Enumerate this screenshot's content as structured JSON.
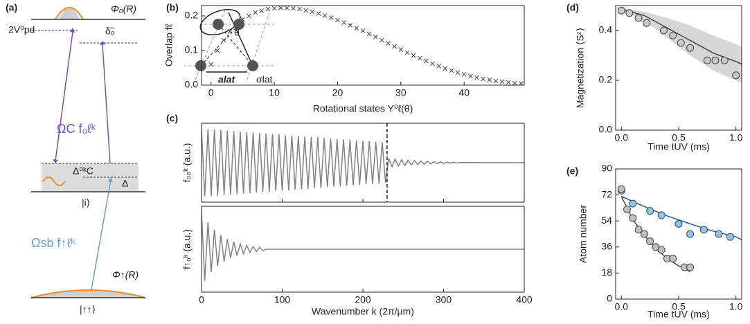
{
  "diagram_a": {
    "panel_label": "(a)",
    "phi0": "Φ₀(R)",
    "v_pd": "2V⁰pd",
    "delta0": "δ̃₀",
    "omega_c": "ΩC f₀ℓᵏ",
    "delta_c": "Δ⁰ᵏC",
    "delta": "Δ",
    "state_i": "|i⟩",
    "omega_sb": "Ωsb f↑ℓᵏ",
    "phi_up": "Φ↑(R)",
    "state_up": "|↑↑⟩"
  },
  "diagram_b": {
    "theta": "θ",
    "a_lat": "alat",
    "sigma_lat": "σlat"
  },
  "chart_data": [
    {
      "type": "scatter",
      "panel_label": "(b)",
      "ylabel": "Overlap fℓ",
      "xlabel": "Rotational states Y⁰ℓ(θ)",
      "xlim": [
        -1.5,
        49.5
      ],
      "xticks": [
        0,
        10,
        20,
        30,
        40
      ],
      "ylim": [
        0,
        0.23
      ],
      "yticks": [
        {
          "value": 0,
          "label": "0.0"
        },
        0.1,
        0.2
      ],
      "series": [
        {
          "color": "#555555",
          "marker": "x",
          "x": [
            0,
            1,
            2,
            3,
            4,
            5,
            6,
            7,
            8,
            9,
            10,
            11,
            12,
            13,
            14,
            15,
            16,
            17,
            18,
            19,
            20,
            21,
            22,
            23,
            24,
            25,
            26,
            27,
            28,
            29,
            30,
            31,
            32,
            33,
            34,
            35,
            36,
            37,
            38,
            39,
            40,
            41,
            42,
            43,
            44,
            45,
            46,
            47,
            48,
            49
          ],
          "values": [
            0.06,
            0.1,
            0.13,
            0.155,
            0.175,
            0.19,
            0.2,
            0.21,
            0.215,
            0.22,
            0.222,
            0.223,
            0.223,
            0.222,
            0.22,
            0.216,
            0.212,
            0.207,
            0.201,
            0.195,
            0.188,
            0.181,
            0.173,
            0.165,
            0.157,
            0.148,
            0.139,
            0.13,
            0.121,
            0.112,
            0.103,
            0.094,
            0.086,
            0.078,
            0.07,
            0.062,
            0.055,
            0.048,
            0.042,
            0.036,
            0.031,
            0.026,
            0.022,
            0.018,
            0.015,
            0.012,
            0.01,
            0.008,
            0.006,
            0.005
          ]
        }
      ]
    },
    {
      "type": "line",
      "panel_label": "(c)",
      "ylabel": "f₀₀ᵏ (a.u.)",
      "xlim": [
        0,
        400
      ],
      "xticks": [
        0,
        100,
        200,
        300,
        400
      ],
      "xtick_labels": false,
      "ylim": [
        -1.1,
        1.1
      ],
      "vline": 230,
      "series": [
        {
          "color": "#808080",
          "x": [
            0,
            4,
            8,
            12,
            16,
            20,
            24,
            28,
            32,
            36,
            40,
            44,
            48,
            52,
            56,
            60,
            64,
            68,
            72,
            76,
            80,
            84,
            88,
            92,
            96,
            100,
            104,
            108,
            112,
            116,
            120,
            124,
            128,
            132,
            136,
            140,
            144,
            148,
            152,
            156,
            160,
            164,
            168,
            172,
            176,
            180,
            184,
            188,
            192,
            196,
            200,
            204,
            208,
            212,
            216,
            220,
            224,
            228,
            232,
            236,
            240,
            244,
            248,
            252,
            256,
            260,
            264,
            268,
            272,
            276,
            280,
            284,
            288,
            292,
            296,
            300,
            304,
            308,
            312,
            316,
            320,
            400
          ],
          "values": [
            0.95,
            -0.94,
            0.94,
            -0.93,
            0.92,
            -0.92,
            0.91,
            -0.9,
            0.9,
            -0.89,
            0.88,
            -0.88,
            0.87,
            -0.86,
            0.85,
            -0.85,
            0.84,
            -0.83,
            0.83,
            -0.82,
            0.81,
            -0.81,
            0.8,
            -0.79,
            0.79,
            -0.78,
            0.77,
            -0.77,
            0.76,
            -0.75,
            0.75,
            -0.74,
            0.73,
            -0.73,
            0.72,
            -0.71,
            0.71,
            -0.7,
            0.69,
            -0.68,
            0.68,
            -0.67,
            0.66,
            -0.66,
            0.65,
            -0.64,
            0.64,
            -0.63,
            0.62,
            -0.62,
            0.61,
            -0.6,
            0.6,
            -0.59,
            0.58,
            -0.58,
            0.57,
            -0.56,
            0.12,
            -0.11,
            0.1,
            -0.09,
            0.085,
            -0.08,
            0.07,
            -0.065,
            0.06,
            -0.055,
            0.05,
            -0.045,
            0.04,
            -0.035,
            0.03,
            -0.027,
            0.024,
            -0.02,
            0.017,
            -0.014,
            0.011,
            -0.008,
            0.005,
            0
          ]
        }
      ]
    },
    {
      "type": "line",
      "ylabel": "f↑₀ᵏ (a.u.)",
      "xlabel": "Wavenumber k (2π/μm)",
      "xlim": [
        0,
        400
      ],
      "xticks": [
        0,
        100,
        200,
        300,
        400
      ],
      "ylim": [
        -1.1,
        1.1
      ],
      "series": [
        {
          "color": "#808080",
          "x": [
            0,
            4,
            8,
            12,
            16,
            20,
            24,
            28,
            32,
            36,
            40,
            44,
            48,
            52,
            56,
            60,
            64,
            68,
            72,
            76,
            80,
            400
          ],
          "values": [
            0.95,
            -0.81,
            0.69,
            -0.59,
            0.5,
            -0.43,
            0.36,
            -0.31,
            0.26,
            -0.22,
            0.19,
            -0.16,
            0.14,
            -0.12,
            0.1,
            -0.08,
            0.07,
            -0.06,
            0.05,
            -0.04,
            0,
            0
          ]
        }
      ]
    },
    {
      "type": "scatter",
      "panel_label": "(d)",
      "ylabel": "Magnetization ⟨Sᶻ⟩",
      "xlabel": "Time tUV (ms)",
      "xlim": [
        -0.05,
        1.05
      ],
      "xticks": [
        {
          "value": 0,
          "label": "0.0"
        },
        0.5,
        {
          "value": 1,
          "label": "1.0"
        }
      ],
      "ylim": [
        0,
        0.5
      ],
      "yticks": [
        {
          "value": 0,
          "label": "0.0"
        },
        0.2,
        0.4
      ],
      "series": [
        {
          "mode": "line",
          "color": "#444444",
          "band_color": "#d6d6d6",
          "x": [
            0,
            0.2,
            0.4,
            0.6,
            0.8,
            1.0,
            1.05
          ],
          "values": [
            0.485,
            0.46,
            0.41,
            0.36,
            0.31,
            0.275,
            0.265
          ],
          "lower": [
            0.48,
            0.44,
            0.37,
            0.3,
            0.24,
            0.2,
            0.19
          ],
          "upper": [
            0.49,
            0.475,
            0.45,
            0.42,
            0.38,
            0.345,
            0.335
          ]
        },
        {
          "marker": "circle",
          "color": "#c8c8c8",
          "x": [
            0,
            0.07,
            0.15,
            0.22,
            0.37,
            0.45,
            0.52,
            0.6,
            0.75,
            0.82,
            0.9,
            1.0
          ],
          "values": [
            0.48,
            0.47,
            0.45,
            0.43,
            0.4,
            0.38,
            0.35,
            0.33,
            0.28,
            0.28,
            0.28,
            0.22
          ]
        }
      ]
    },
    {
      "type": "scatter",
      "panel_label": "(e)",
      "ylabel": "Atom number",
      "xlabel": "Time tUV (ms)",
      "xlim": [
        -0.05,
        1.05
      ],
      "xticks": [
        {
          "value": 0,
          "label": "0.0"
        },
        0.5,
        {
          "value": 1,
          "label": "1.0"
        }
      ],
      "ylim": [
        0,
        90
      ],
      "yticks": [
        0,
        18,
        36,
        54,
        72,
        90
      ],
      "series": [
        {
          "mode": "line",
          "color": "#1f5fa0",
          "x": [
            0,
            0.2,
            0.4,
            0.6,
            0.8,
            1.0,
            1.05
          ],
          "values": [
            71,
            64,
            57.5,
            52,
            47,
            43,
            41
          ]
        },
        {
          "marker": "circle",
          "color": "#8ec5ea",
          "x": [
            0,
            0.1,
            0.25,
            0.35,
            0.5,
            0.6,
            0.72,
            0.85,
            0.95
          ],
          "values": [
            75,
            66,
            61,
            58,
            52,
            45,
            48,
            45,
            43
          ]
        },
        {
          "mode": "line",
          "color": "#444444",
          "x": [
            0,
            0.1,
            0.2,
            0.3,
            0.4,
            0.5,
            0.6
          ],
          "values": [
            71,
            55,
            44,
            35,
            28,
            23,
            19
          ]
        },
        {
          "marker": "circle",
          "color": "#c0c0c0",
          "x": [
            0,
            0.05,
            0.1,
            0.15,
            0.2,
            0.25,
            0.3,
            0.35,
            0.4,
            0.45,
            0.55,
            0.6
          ],
          "values": [
            76,
            62,
            56,
            48,
            45,
            40,
            36,
            34,
            28,
            28,
            22,
            22
          ]
        }
      ]
    }
  ]
}
